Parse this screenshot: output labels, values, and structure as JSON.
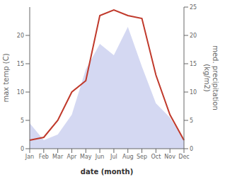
{
  "chart_data": {
    "type": "line",
    "categories": [
      "Jan",
      "Feb",
      "Mar",
      "Apr",
      "May",
      "Jun",
      "Jul",
      "Aug",
      "Sep",
      "Oct",
      "Nov",
      "Dec"
    ],
    "series": [
      {
        "type": "area",
        "color": "#b0b8e8",
        "axis": "y2",
        "values": [
          4.5,
          1.5,
          2.5,
          6.0,
          14.0,
          18.5,
          16.5,
          21.5,
          14.5,
          8.0,
          5.5,
          1.5
        ]
      },
      {
        "type": "line",
        "color": "#c0392b",
        "values": [
          1.5,
          2.0,
          5.0,
          10.0,
          12.0,
          23.5,
          24.5,
          23.5,
          23.0,
          13.0,
          6.0,
          1.5
        ]
      }
    ],
    "xlabel": "date (month)",
    "ylabel": "max temp (C)",
    "y2label": "med. precipitation\n(kg/m2)",
    "ylim": [
      0,
      25
    ],
    "yticks": [
      0,
      5,
      10,
      15,
      20
    ],
    "y2lim": [
      0,
      25
    ],
    "y2ticks": [
      0,
      5,
      10,
      15,
      20,
      25
    ],
    "grid": false
  }
}
